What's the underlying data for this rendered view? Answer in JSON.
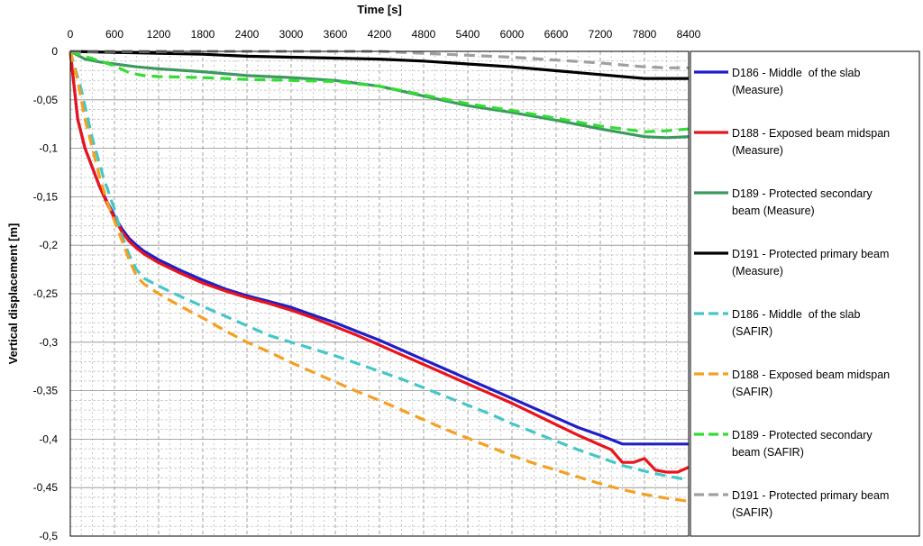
{
  "chart_data": {
    "type": "line",
    "xlabel": "Time [s]",
    "ylabel": "Vertical displacement [m]",
    "xlim": [
      0,
      8400
    ],
    "ylim": [
      -0.5,
      0
    ],
    "x_ticks": [
      0,
      600,
      1200,
      1800,
      2400,
      3000,
      3600,
      4200,
      4800,
      5400,
      6000,
      6600,
      7200,
      7800,
      8400
    ],
    "y_ticks": [
      0,
      -0.05,
      -0.1,
      -0.15,
      -0.2,
      -0.25,
      -0.3,
      -0.35,
      -0.4,
      -0.45,
      -0.5
    ],
    "y_tick_labels": [
      "0",
      "-0,05",
      "-0,1",
      "-0,15",
      "-0,2",
      "-0,25",
      "-0,3",
      "-0,35",
      "-0,4",
      "-0,45",
      "-0,5"
    ],
    "grid": true,
    "legend_position": "right",
    "series": [
      {
        "name_lines": [
          "D186 - Middle  of the slab",
          "(Measure)"
        ],
        "color": "#1f1fc8",
        "style": "solid",
        "x": [
          0,
          100,
          200,
          300,
          400,
          500,
          600,
          700,
          800,
          900,
          1000,
          1200,
          1500,
          1800,
          2100,
          2400,
          2700,
          3000,
          3300,
          3600,
          3900,
          4200,
          4500,
          4800,
          5100,
          5400,
          5700,
          6000,
          6300,
          6600,
          6900,
          7200,
          7500,
          7800,
          8100,
          8400
        ],
        "y": [
          0,
          -0.07,
          -0.1,
          -0.12,
          -0.14,
          -0.155,
          -0.17,
          -0.183,
          -0.193,
          -0.2,
          -0.206,
          -0.215,
          -0.226,
          -0.236,
          -0.245,
          -0.252,
          -0.258,
          -0.264,
          -0.272,
          -0.28,
          -0.289,
          -0.298,
          -0.308,
          -0.318,
          -0.328,
          -0.338,
          -0.348,
          -0.358,
          -0.368,
          -0.378,
          -0.388,
          -0.396,
          -0.405,
          -0.405,
          -0.405,
          -0.405
        ]
      },
      {
        "name_lines": [
          "D188 - Exposed beam midspan",
          "(Measure)"
        ],
        "color": "#e8141c",
        "style": "solid",
        "x": [
          0,
          100,
          200,
          300,
          400,
          500,
          600,
          700,
          800,
          900,
          1000,
          1200,
          1500,
          1800,
          2100,
          2400,
          2700,
          3000,
          3300,
          3600,
          3900,
          4200,
          4500,
          4800,
          5100,
          5400,
          5700,
          6000,
          6300,
          6600,
          6900,
          7200,
          7350,
          7500,
          7650,
          7800,
          7950,
          8100,
          8250,
          8400
        ],
        "y": [
          0,
          -0.07,
          -0.1,
          -0.12,
          -0.14,
          -0.157,
          -0.172,
          -0.186,
          -0.196,
          -0.203,
          -0.209,
          -0.218,
          -0.229,
          -0.239,
          -0.247,
          -0.254,
          -0.26,
          -0.267,
          -0.275,
          -0.284,
          -0.293,
          -0.303,
          -0.313,
          -0.323,
          -0.333,
          -0.343,
          -0.353,
          -0.363,
          -0.374,
          -0.385,
          -0.396,
          -0.406,
          -0.411,
          -0.424,
          -0.424,
          -0.42,
          -0.432,
          -0.434,
          -0.434,
          -0.429
        ]
      },
      {
        "name_lines": [
          "D189 - Protected secondary",
          "beam (Measure)"
        ],
        "color": "#3c9a5f",
        "style": "solid",
        "x": [
          0,
          200,
          400,
          600,
          900,
          1200,
          1800,
          2400,
          3000,
          3600,
          4200,
          4800,
          5400,
          6000,
          6600,
          7200,
          7800,
          8100,
          8400
        ],
        "y": [
          0,
          -0.008,
          -0.011,
          -0.013,
          -0.016,
          -0.018,
          -0.021,
          -0.025,
          -0.027,
          -0.03,
          -0.036,
          -0.046,
          -0.056,
          -0.063,
          -0.071,
          -0.08,
          -0.088,
          -0.089,
          -0.088
        ]
      },
      {
        "name_lines": [
          "D191 - Protected primary beam",
          "(Measure)"
        ],
        "color": "#000000",
        "style": "solid",
        "x": [
          0,
          600,
          1200,
          1800,
          2400,
          3000,
          3600,
          4200,
          4800,
          5400,
          6000,
          6600,
          7200,
          7800,
          8100,
          8400
        ],
        "y": [
          0,
          -0.001,
          -0.002,
          -0.003,
          -0.005,
          -0.006,
          -0.007,
          -0.008,
          -0.01,
          -0.013,
          -0.016,
          -0.02,
          -0.024,
          -0.028,
          -0.028,
          -0.028
        ]
      },
      {
        "name_lines": [
          "D186 - Middle  of the slab",
          "(SAFIR)"
        ],
        "color": "#45c7c7",
        "style": "dashed",
        "x": [
          0,
          150,
          300,
          450,
          600,
          700,
          800,
          900,
          1000,
          1200,
          1500,
          1800,
          2100,
          2400,
          2700,
          3000,
          3300,
          3600,
          3900,
          4200,
          4500,
          4800,
          5100,
          5400,
          5700,
          6000,
          6300,
          6600,
          6900,
          7200,
          7500,
          7800,
          8100,
          8400
        ],
        "y": [
          0,
          -0.04,
          -0.09,
          -0.13,
          -0.163,
          -0.19,
          -0.21,
          -0.225,
          -0.234,
          -0.242,
          -0.253,
          -0.263,
          -0.273,
          -0.283,
          -0.293,
          -0.3,
          -0.307,
          -0.314,
          -0.322,
          -0.33,
          -0.338,
          -0.347,
          -0.356,
          -0.365,
          -0.374,
          -0.384,
          -0.393,
          -0.402,
          -0.411,
          -0.419,
          -0.427,
          -0.433,
          -0.438,
          -0.442
        ]
      },
      {
        "name_lines": [
          "D188 - Exposed beam midspan",
          "(SAFIR)"
        ],
        "color": "#f5a020",
        "style": "dashed",
        "x": [
          0,
          100,
          200,
          300,
          400,
          500,
          600,
          700,
          800,
          900,
          1000,
          1200,
          1500,
          1800,
          2100,
          2400,
          2700,
          3000,
          3300,
          3600,
          3900,
          4200,
          4500,
          4800,
          5100,
          5400,
          5700,
          6000,
          6300,
          6600,
          6900,
          7200,
          7500,
          7800,
          8100,
          8400
        ],
        "y": [
          0,
          -0.03,
          -0.07,
          -0.1,
          -0.13,
          -0.155,
          -0.175,
          -0.195,
          -0.215,
          -0.232,
          -0.24,
          -0.25,
          -0.263,
          -0.275,
          -0.288,
          -0.3,
          -0.31,
          -0.321,
          -0.331,
          -0.341,
          -0.351,
          -0.36,
          -0.37,
          -0.38,
          -0.39,
          -0.399,
          -0.408,
          -0.417,
          -0.425,
          -0.432,
          -0.439,
          -0.446,
          -0.452,
          -0.457,
          -0.461,
          -0.464
        ]
      },
      {
        "name_lines": [
          "D189 - Protected secondary",
          "beam (SAFIR)"
        ],
        "color": "#33dd33",
        "style": "dashed",
        "x": [
          0,
          200,
          400,
          600,
          800,
          1000,
          1200,
          1800,
          2400,
          3000,
          3600,
          4200,
          4800,
          5400,
          6000,
          6600,
          7200,
          7800,
          8100,
          8400
        ],
        "y": [
          0,
          -0.005,
          -0.01,
          -0.015,
          -0.022,
          -0.025,
          -0.026,
          -0.027,
          -0.029,
          -0.03,
          -0.031,
          -0.036,
          -0.045,
          -0.054,
          -0.061,
          -0.069,
          -0.077,
          -0.083,
          -0.082,
          -0.08
        ]
      },
      {
        "name_lines": [
          "D191 - Protected primary beam",
          "(SAFIR)"
        ],
        "color": "#a0a0a0",
        "style": "dashed",
        "x": [
          0,
          1200,
          2400,
          3600,
          4200,
          4800,
          5400,
          6000,
          6600,
          7200,
          7800,
          8100,
          8400
        ],
        "y": [
          0,
          0,
          0,
          0,
          0,
          -0.002,
          -0.004,
          -0.006,
          -0.009,
          -0.012,
          -0.016,
          -0.017,
          -0.017
        ]
      }
    ]
  }
}
